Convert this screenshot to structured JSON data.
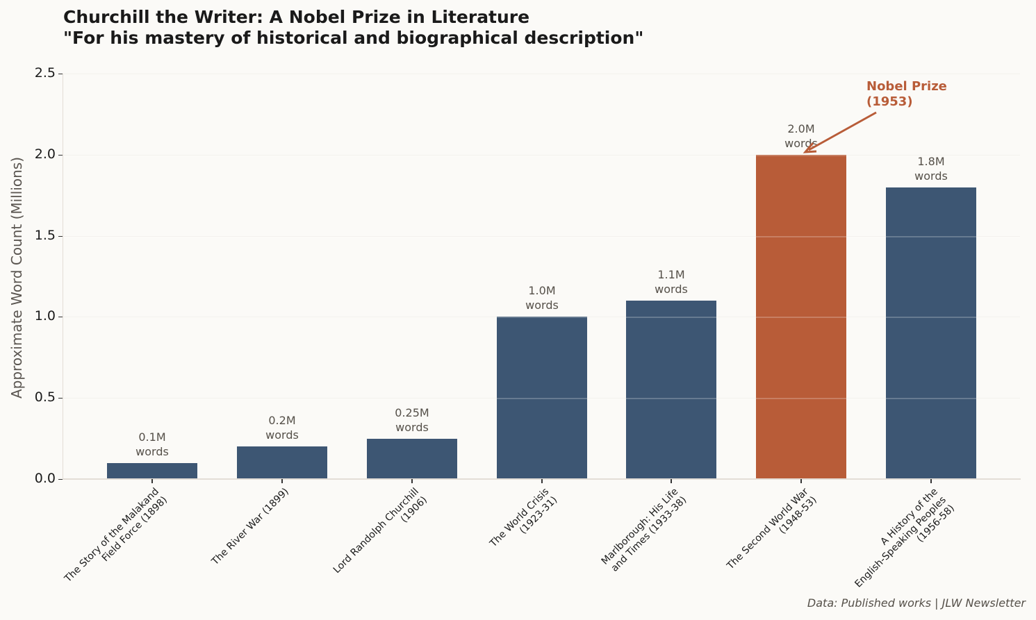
{
  "header": {
    "title": "Churchill the Writer: A Nobel Prize in Literature\n\"For his mastery of historical and biographical description\""
  },
  "axes": {
    "ylabel": "Approximate Word Count (Millions)",
    "yticks": [
      "0.0",
      "0.5",
      "1.0",
      "1.5",
      "2.0",
      "2.5"
    ]
  },
  "annotation": {
    "text": "Nobel Prize\n(1953)",
    "color": "#b85c38"
  },
  "footer": {
    "source": "Data: Published works | JLW Newsletter"
  },
  "colors": {
    "default_bar": "#3d5673",
    "highlight_bar": "#b85c38",
    "background": "#fbfaf7"
  },
  "chart_data": {
    "type": "bar",
    "title": "Churchill the Writer: A Nobel Prize in Literature",
    "subtitle": "\"For his mastery of historical and biographical description\"",
    "xlabel": "",
    "ylabel": "Approximate Word Count (Millions)",
    "ylim": [
      0,
      2.5
    ],
    "yticks": [
      0.0,
      0.5,
      1.0,
      1.5,
      2.0,
      2.5
    ],
    "grid": "y",
    "categories": [
      "The Story of the Malakand\nField Force (1898)",
      "The River War (1899)",
      "Lord Randolph Churchill\n(1906)",
      "The World Crisis\n(1923-31)",
      "Marlborough: His Life\nand Times (1933-38)",
      "The Second World War\n(1948-53)",
      "A History of the\nEnglish-Speaking Peoples\n(1956-58)"
    ],
    "values": [
      0.1,
      0.2,
      0.25,
      1.0,
      1.1,
      2.0,
      1.8
    ],
    "data_labels": [
      "0.1M\nwords",
      "0.2M\nwords",
      "0.25M\nwords",
      "1.0M\nwords",
      "1.1M\nwords",
      "2.0M\nwords",
      "1.8M\nwords"
    ],
    "highlight_index": 5,
    "annotations": [
      {
        "text": "Nobel Prize (1953)",
        "target_category_index": 5
      }
    ],
    "source": "Data: Published works | JLW Newsletter"
  }
}
